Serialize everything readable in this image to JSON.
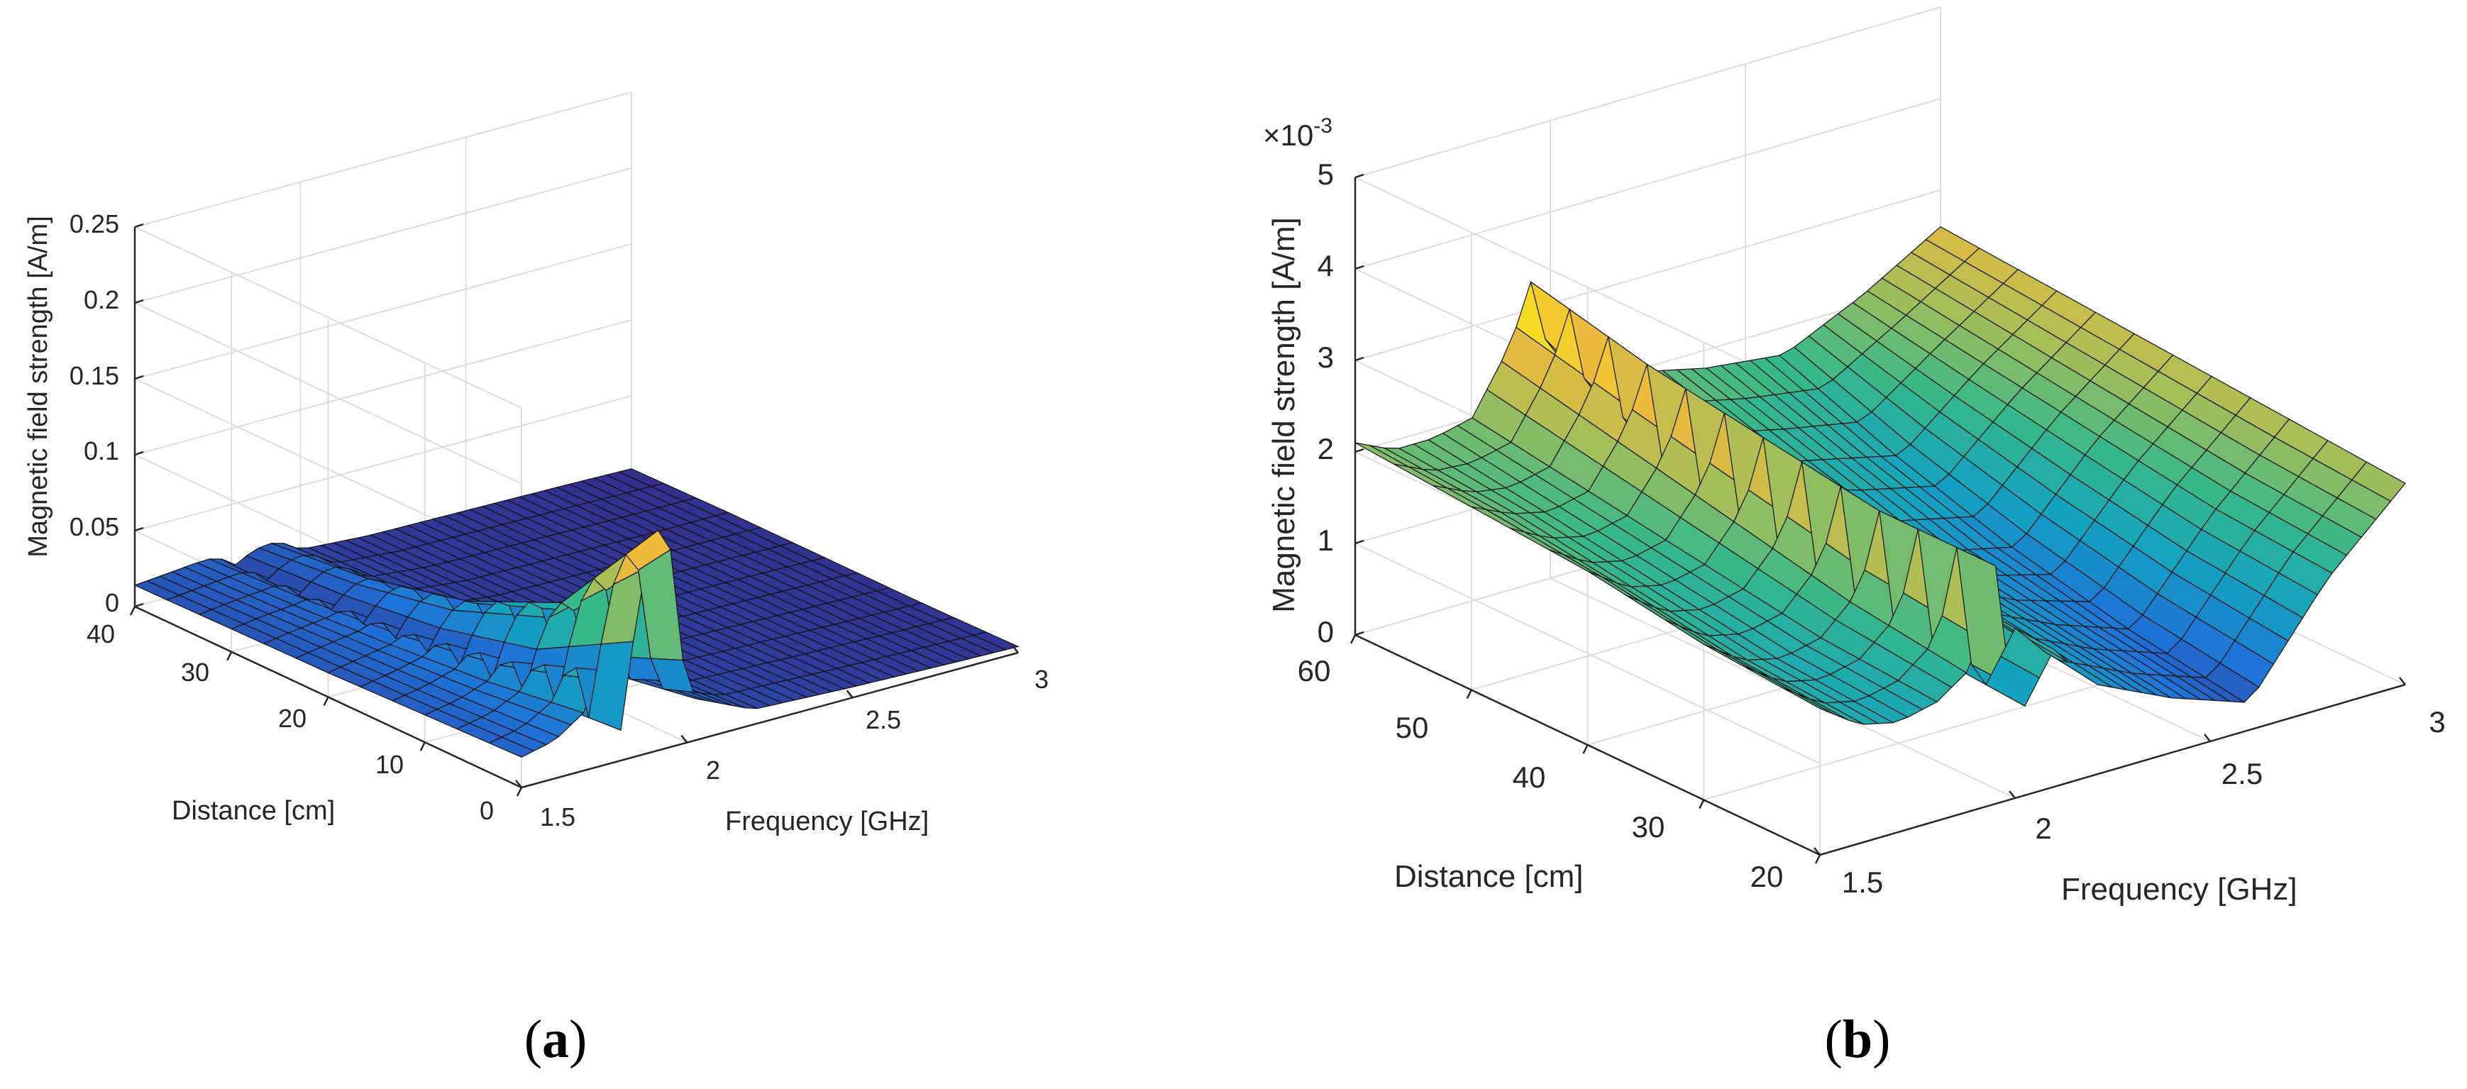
{
  "chart_data": [
    {
      "type": "surface3d",
      "panel": "a",
      "caption_letter": "a",
      "xlabel": "Frequency [GHz]",
      "ylabel": "Distance [cm]",
      "zlabel": "Magnetic field strength [A/m]",
      "xlim": [
        1.5,
        3
      ],
      "ylim": [
        0,
        40
      ],
      "zlim": [
        0,
        0.25
      ],
      "x_ticks": [
        "1.5",
        "2",
        "2.5",
        "3"
      ],
      "y_ticks": [
        "0",
        "10",
        "20",
        "30",
        "40"
      ],
      "z_ticks": [
        "0",
        "0.05",
        "0.1",
        "0.15",
        "0.2",
        "0.25"
      ],
      "colormap": [
        "#352a87",
        "#1f72d8",
        "#13a2c1",
        "#36b88a",
        "#a8be56",
        "#f0ba3b",
        "#f9fb0e"
      ],
      "peak": {
        "frequency": 1.9,
        "distance": 0,
        "value": 0.15
      },
      "frequencies": [
        1.5,
        1.6,
        1.7,
        1.75,
        1.8,
        1.85,
        1.9,
        1.95,
        2.0,
        2.2,
        2.5,
        2.8,
        3.0
      ],
      "distances": [
        0,
        10,
        20,
        30,
        40
      ],
      "values": [
        [
          0.02,
          0.025,
          0.04,
          0.075,
          0.02,
          0.095,
          0.15,
          0.13,
          0.03,
          0.01,
          0.007,
          0.005,
          0.004
        ],
        [
          0.018,
          0.022,
          0.03,
          0.045,
          0.015,
          0.05,
          0.07,
          0.06,
          0.018,
          0.008,
          0.006,
          0.004,
          0.003
        ],
        [
          0.016,
          0.02,
          0.024,
          0.03,
          0.012,
          0.03,
          0.04,
          0.035,
          0.012,
          0.006,
          0.005,
          0.004,
          0.003
        ],
        [
          0.015,
          0.018,
          0.02,
          0.022,
          0.01,
          0.02,
          0.025,
          0.02,
          0.01,
          0.005,
          0.004,
          0.003,
          0.003
        ],
        [
          0.014,
          0.016,
          0.018,
          0.018,
          0.009,
          0.015,
          0.018,
          0.015,
          0.008,
          0.005,
          0.004,
          0.003,
          0.002
        ]
      ]
    },
    {
      "type": "surface3d",
      "panel": "b",
      "caption_letter": "b",
      "xlabel": "Frequency [GHz]",
      "ylabel": "Distance [cm]",
      "zlabel": "Magnetic field strength [A/m]",
      "z_exponent_label": "×10",
      "z_exponent_value": "-3",
      "xlim": [
        1.5,
        3
      ],
      "ylim": [
        20,
        60
      ],
      "zlim": [
        0,
        5
      ],
      "x_ticks": [
        "1.5",
        "2",
        "2.5",
        "3"
      ],
      "y_ticks": [
        "20",
        "30",
        "40",
        "50",
        "60"
      ],
      "z_ticks": [
        "0",
        "1",
        "2",
        "3",
        "4",
        "5"
      ],
      "colormap": [
        "#352a87",
        "#1f72d8",
        "#13a2c1",
        "#36b88a",
        "#a8be56",
        "#f0ba3b",
        "#f9fb0e"
      ],
      "peak": {
        "frequency": 1.95,
        "distance": 60,
        "value": 3.3
      },
      "frequencies": [
        1.5,
        1.6,
        1.7,
        1.8,
        1.9,
        1.95,
        2.0,
        2.1,
        2.2,
        2.4,
        2.6,
        2.8,
        3.0
      ],
      "distances": [
        20,
        30,
        40,
        50,
        60
      ],
      "values": [
        [
          1.6,
          1.3,
          1.2,
          1.3,
          1.6,
          2.6,
          0.8,
          1.5,
          1.0,
          0.6,
          0.3,
          1.4,
          2.2
        ],
        [
          1.7,
          1.4,
          1.3,
          1.4,
          1.8,
          2.6,
          0.9,
          1.6,
          1.2,
          0.8,
          0.5,
          1.5,
          2.3
        ],
        [
          1.9,
          1.6,
          1.5,
          1.6,
          2.1,
          2.8,
          1.2,
          1.8,
          1.4,
          1.0,
          0.8,
          1.7,
          2.4
        ],
        [
          2.0,
          1.8,
          1.7,
          1.8,
          2.4,
          3.0,
          1.6,
          2.0,
          1.6,
          1.4,
          1.2,
          1.9,
          2.5
        ],
        [
          2.1,
          1.9,
          1.9,
          2.0,
          2.7,
          3.3,
          2.4,
          2.3,
          2.0,
          1.8,
          1.7,
          2.1,
          2.6
        ]
      ]
    }
  ]
}
